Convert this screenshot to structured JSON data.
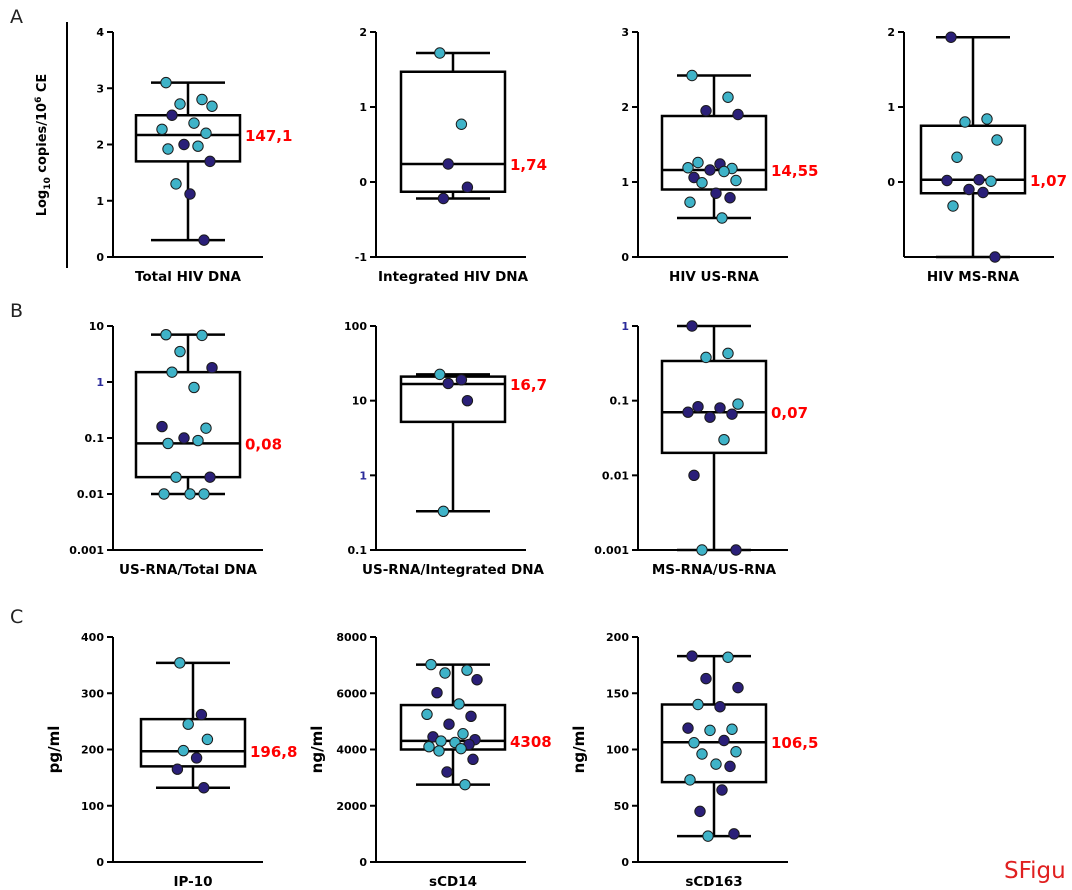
{
  "figure": {
    "panels": [
      "A",
      "B",
      "C"
    ],
    "footer": "SFigu",
    "shared_ylabel_main": "Log",
    "shared_ylabel_sub": "10",
    "shared_ylabel_mid": " copies/10",
    "shared_ylabel_sup": "6",
    "shared_ylabel_end": " CE",
    "colors": {
      "dark": "#2a1f78",
      "light": "#3fb3c8",
      "annot": "#ff0000",
      "axis": "#000000"
    }
  },
  "chart_data": [
    {
      "type": "box",
      "xlabel": "Total HIV DNA",
      "ylabel": "",
      "scale": "linear",
      "ylim": [
        0,
        4
      ],
      "yticks": [
        0,
        1,
        2,
        3,
        4
      ],
      "ytick_labels": [
        "0",
        "1",
        "2",
        "3",
        "4"
      ],
      "box": {
        "min": 0.3,
        "q1": 1.7,
        "median": 2.17,
        "q3": 2.52,
        "max": 3.1
      },
      "median_label": "147,1",
      "points": [
        {
          "y": 3.1,
          "c": "light"
        },
        {
          "y": 2.8,
          "c": "light"
        },
        {
          "y": 2.72,
          "c": "light"
        },
        {
          "y": 2.68,
          "c": "light"
        },
        {
          "y": 2.52,
          "c": "dark"
        },
        {
          "y": 2.38,
          "c": "light"
        },
        {
          "y": 2.27,
          "c": "light"
        },
        {
          "y": 2.2,
          "c": "light"
        },
        {
          "y": 2.0,
          "c": "dark"
        },
        {
          "y": 1.97,
          "c": "light"
        },
        {
          "y": 1.92,
          "c": "light"
        },
        {
          "y": 1.7,
          "c": "dark"
        },
        {
          "y": 1.3,
          "c": "light"
        },
        {
          "y": 1.12,
          "c": "dark"
        },
        {
          "y": 0.3,
          "c": "dark"
        }
      ]
    },
    {
      "type": "box",
      "xlabel": "Integrated HIV DNA",
      "ylabel": "",
      "scale": "linear",
      "ylim": [
        -1,
        2
      ],
      "yticks": [
        -1,
        0,
        1,
        2
      ],
      "ytick_labels": [
        "-1",
        "0",
        "1",
        "2"
      ],
      "box": {
        "min": -0.22,
        "q1": -0.13,
        "median": 0.24,
        "q3": 1.47,
        "max": 1.72
      },
      "median_label": "1,74",
      "points": [
        {
          "y": 1.72,
          "c": "light"
        },
        {
          "y": 0.77,
          "c": "light"
        },
        {
          "y": 0.24,
          "c": "dark"
        },
        {
          "y": -0.07,
          "c": "dark"
        },
        {
          "y": -0.22,
          "c": "dark"
        }
      ]
    },
    {
      "type": "box",
      "xlabel": "HIV US-RNA",
      "ylabel": "",
      "scale": "linear",
      "ylim": [
        0,
        3
      ],
      "yticks": [
        0,
        1,
        2,
        3
      ],
      "ytick_labels": [
        "0",
        "1",
        "2",
        "3"
      ],
      "box": {
        "min": 0.52,
        "q1": 0.9,
        "median": 1.16,
        "q3": 1.88,
        "max": 2.42
      },
      "median_label": "14,55",
      "points": [
        {
          "y": 2.42,
          "c": "light"
        },
        {
          "y": 2.13,
          "c": "light"
        },
        {
          "y": 1.95,
          "c": "dark"
        },
        {
          "y": 1.9,
          "c": "dark"
        },
        {
          "y": 1.26,
          "c": "light"
        },
        {
          "y": 1.24,
          "c": "dark"
        },
        {
          "y": 1.19,
          "c": "light"
        },
        {
          "y": 1.18,
          "c": "light"
        },
        {
          "y": 1.16,
          "c": "dark"
        },
        {
          "y": 1.14,
          "c": "light"
        },
        {
          "y": 1.06,
          "c": "dark"
        },
        {
          "y": 1.02,
          "c": "light"
        },
        {
          "y": 0.99,
          "c": "light"
        },
        {
          "y": 0.85,
          "c": "dark"
        },
        {
          "y": 0.79,
          "c": "dark"
        },
        {
          "y": 0.73,
          "c": "light"
        },
        {
          "y": 0.52,
          "c": "light"
        }
      ]
    },
    {
      "type": "box",
      "xlabel": "HIV MS-RNA",
      "ylabel": "",
      "scale": "linear",
      "ylim": [
        -1,
        2
      ],
      "yticks": [
        0,
        1,
        2
      ],
      "ytick_labels": [
        "0",
        "1",
        "2"
      ],
      "box": {
        "min": -1.0,
        "q1": -0.15,
        "median": 0.03,
        "q3": 0.75,
        "max": 1.93
      },
      "median_label": "1,07",
      "points": [
        {
          "y": 1.93,
          "c": "dark"
        },
        {
          "y": 0.84,
          "c": "light"
        },
        {
          "y": 0.8,
          "c": "light"
        },
        {
          "y": 0.56,
          "c": "light"
        },
        {
          "y": 0.33,
          "c": "light"
        },
        {
          "y": 0.03,
          "c": "dark"
        },
        {
          "y": 0.02,
          "c": "dark"
        },
        {
          "y": 0.01,
          "c": "light"
        },
        {
          "y": -0.1,
          "c": "dark"
        },
        {
          "y": -0.14,
          "c": "dark"
        },
        {
          "y": -0.32,
          "c": "light"
        },
        {
          "y": -1.0,
          "c": "dark"
        }
      ]
    },
    {
      "type": "box",
      "xlabel": "US-RNA/Total DNA",
      "ylabel": "",
      "scale": "log",
      "ylim": [
        0.001,
        10
      ],
      "yticks": [
        0.001,
        0.01,
        0.1,
        1,
        10
      ],
      "ytick_labels": [
        "0.001",
        "0.01",
        "0.1",
        "1",
        "10"
      ],
      "box": {
        "min": 0.01,
        "q1": 0.02,
        "median": 0.08,
        "q3": 1.5,
        "max": 7
      },
      "median_label": "0,08",
      "points": [
        {
          "y": 7,
          "c": "light"
        },
        {
          "y": 6.8,
          "c": "light"
        },
        {
          "y": 3.5,
          "c": "light"
        },
        {
          "y": 1.8,
          "c": "dark"
        },
        {
          "y": 1.5,
          "c": "light"
        },
        {
          "y": 0.8,
          "c": "light"
        },
        {
          "y": 0.16,
          "c": "dark"
        },
        {
          "y": 0.15,
          "c": "light"
        },
        {
          "y": 0.1,
          "c": "dark"
        },
        {
          "y": 0.09,
          "c": "light"
        },
        {
          "y": 0.08,
          "c": "light"
        },
        {
          "y": 0.02,
          "c": "dark"
        },
        {
          "y": 0.02,
          "c": "light"
        },
        {
          "y": 0.01,
          "c": "light"
        },
        {
          "y": 0.01,
          "c": "light"
        },
        {
          "y": 0.01,
          "c": "light"
        }
      ]
    },
    {
      "type": "box",
      "xlabel": "US-RNA/Integrated DNA",
      "ylabel": "",
      "scale": "log",
      "ylim": [
        0.1,
        100
      ],
      "yticks": [
        0.1,
        1,
        10,
        100
      ],
      "ytick_labels": [
        "0.1",
        "1",
        "10",
        "100"
      ],
      "box": {
        "min": 0.33,
        "q1": 5.2,
        "median": 16.7,
        "q3": 21,
        "max": 22.5
      },
      "median_label": "16,7",
      "points": [
        {
          "y": 22.5,
          "c": "light"
        },
        {
          "y": 19,
          "c": "dark"
        },
        {
          "y": 17,
          "c": "dark"
        },
        {
          "y": 10,
          "c": "dark"
        },
        {
          "y": 0.33,
          "c": "light"
        }
      ]
    },
    {
      "type": "box",
      "xlabel": "MS-RNA/US-RNA",
      "ylabel": "",
      "scale": "log",
      "ylim": [
        0.001,
        1
      ],
      "yticks": [
        0.001,
        0.01,
        0.1,
        1
      ],
      "ytick_labels": [
        "0.001",
        "0.01",
        "0.1",
        "1"
      ],
      "box": {
        "min": 0.001,
        "q1": 0.02,
        "median": 0.07,
        "q3": 0.34,
        "max": 1
      },
      "median_label": "0,07",
      "points": [
        {
          "y": 1,
          "c": "dark"
        },
        {
          "y": 0.43,
          "c": "light"
        },
        {
          "y": 0.38,
          "c": "light"
        },
        {
          "y": 0.09,
          "c": "light"
        },
        {
          "y": 0.083,
          "c": "dark"
        },
        {
          "y": 0.08,
          "c": "dark"
        },
        {
          "y": 0.07,
          "c": "dark"
        },
        {
          "y": 0.066,
          "c": "dark"
        },
        {
          "y": 0.06,
          "c": "dark"
        },
        {
          "y": 0.03,
          "c": "light"
        },
        {
          "y": 0.01,
          "c": "dark"
        },
        {
          "y": 0.001,
          "c": "dark"
        },
        {
          "y": 0.001,
          "c": "light"
        }
      ]
    },
    {
      "type": "box",
      "xlabel": "IP-10",
      "ylabel": "pg/ml",
      "scale": "linear",
      "ylim": [
        0,
        400
      ],
      "yticks": [
        0,
        100,
        200,
        300,
        400
      ],
      "ytick_labels": [
        "0",
        "100",
        "200",
        "300",
        "400"
      ],
      "box": {
        "min": 132,
        "q1": 170,
        "median": 197,
        "q3": 254,
        "max": 354
      },
      "median_label": "196,8",
      "points": [
        {
          "y": 354,
          "c": "light"
        },
        {
          "y": 262,
          "c": "dark"
        },
        {
          "y": 245,
          "c": "light"
        },
        {
          "y": 218,
          "c": "light"
        },
        {
          "y": 198,
          "c": "light"
        },
        {
          "y": 185,
          "c": "dark"
        },
        {
          "y": 165,
          "c": "dark"
        },
        {
          "y": 132,
          "c": "dark"
        }
      ]
    },
    {
      "type": "box",
      "xlabel": "sCD14",
      "ylabel": "ng/ml",
      "scale": "linear",
      "ylim": [
        0,
        8000
      ],
      "yticks": [
        0,
        2000,
        4000,
        6000,
        8000
      ],
      "ytick_labels": [
        "0",
        "2000",
        "4000",
        "6000",
        "8000"
      ],
      "box": {
        "min": 2750,
        "q1": 4000,
        "median": 4308,
        "q3": 5580,
        "max": 7020
      },
      "median_label": "4308",
      "points": [
        {
          "y": 7020,
          "c": "light"
        },
        {
          "y": 6820,
          "c": "light"
        },
        {
          "y": 6720,
          "c": "light"
        },
        {
          "y": 6480,
          "c": "dark"
        },
        {
          "y": 6020,
          "c": "dark"
        },
        {
          "y": 5620,
          "c": "light"
        },
        {
          "y": 5250,
          "c": "light"
        },
        {
          "y": 5180,
          "c": "dark"
        },
        {
          "y": 4900,
          "c": "dark"
        },
        {
          "y": 4560,
          "c": "light"
        },
        {
          "y": 4450,
          "c": "dark"
        },
        {
          "y": 4350,
          "c": "dark"
        },
        {
          "y": 4300,
          "c": "light"
        },
        {
          "y": 4250,
          "c": "light"
        },
        {
          "y": 4180,
          "c": "dark"
        },
        {
          "y": 4100,
          "c": "light"
        },
        {
          "y": 4030,
          "c": "light"
        },
        {
          "y": 3950,
          "c": "light"
        },
        {
          "y": 3650,
          "c": "dark"
        },
        {
          "y": 3200,
          "c": "dark"
        },
        {
          "y": 2750,
          "c": "light"
        }
      ]
    },
    {
      "type": "box",
      "xlabel": "sCD163",
      "ylabel": "ng/ml",
      "scale": "linear",
      "ylim": [
        0,
        200
      ],
      "yticks": [
        0,
        50,
        100,
        150,
        200
      ],
      "ytick_labels": [
        "0",
        "50",
        "100",
        "150",
        "200"
      ],
      "box": {
        "min": 23,
        "q1": 71,
        "median": 106.5,
        "q3": 140,
        "max": 183
      },
      "median_label": "106,5",
      "points": [
        {
          "y": 183,
          "c": "dark"
        },
        {
          "y": 182,
          "c": "light"
        },
        {
          "y": 163,
          "c": "dark"
        },
        {
          "y": 155,
          "c": "dark"
        },
        {
          "y": 140,
          "c": "light"
        },
        {
          "y": 138,
          "c": "dark"
        },
        {
          "y": 119,
          "c": "dark"
        },
        {
          "y": 118,
          "c": "light"
        },
        {
          "y": 117,
          "c": "light"
        },
        {
          "y": 108,
          "c": "dark"
        },
        {
          "y": 106,
          "c": "light"
        },
        {
          "y": 98,
          "c": "light"
        },
        {
          "y": 96,
          "c": "light"
        },
        {
          "y": 87,
          "c": "light"
        },
        {
          "y": 85,
          "c": "dark"
        },
        {
          "y": 73,
          "c": "light"
        },
        {
          "y": 64,
          "c": "dark"
        },
        {
          "y": 45,
          "c": "dark"
        },
        {
          "y": 25,
          "c": "dark"
        },
        {
          "y": 23,
          "c": "light"
        }
      ]
    }
  ]
}
